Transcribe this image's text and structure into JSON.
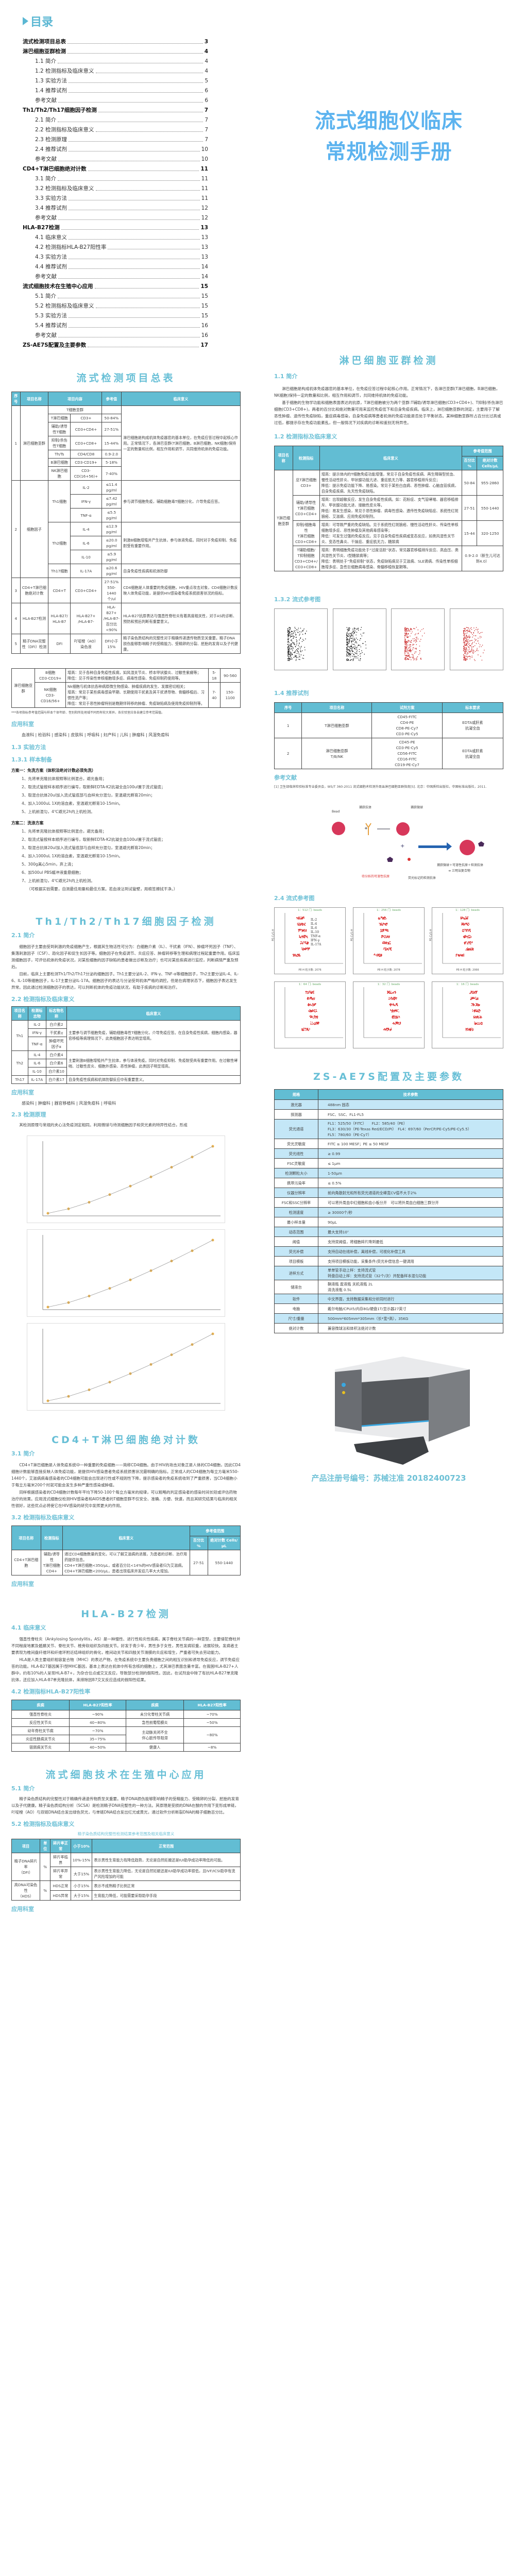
{
  "toc": {
    "title": "目录",
    "items": [
      {
        "label": "流式检测项目总表",
        "page": "3",
        "main": true
      },
      {
        "label": "淋巴细胞亚群检测",
        "page": "4",
        "main": true
      },
      {
        "label": "1.1 简介",
        "page": "4"
      },
      {
        "label": "1.2 检测指标及临床意义",
        "page": "4"
      },
      {
        "label": "1.3 实验方法",
        "page": "5"
      },
      {
        "label": "1.4 推荐试剂",
        "page": "6"
      },
      {
        "label": "参考文献",
        "page": "6"
      },
      {
        "label": "Th1/Th2/Th17细胞因子检测",
        "page": "7",
        "main": true
      },
      {
        "label": "2.1 简介",
        "page": "7"
      },
      {
        "label": "2.2 检测指标及临床意义",
        "page": "7"
      },
      {
        "label": "2.3 检测原理",
        "page": "7"
      },
      {
        "label": "2.4 推荐试剂",
        "page": "10"
      },
      {
        "label": "参考文献",
        "page": "10"
      },
      {
        "label": "CD4+T淋巴细胞绝对计数",
        "page": "11",
        "main": true
      },
      {
        "label": "3.1 简介",
        "page": "11"
      },
      {
        "label": "3.2 检测指标及临床意义",
        "page": "11"
      },
      {
        "label": "3.3 实验方法",
        "page": "11"
      },
      {
        "label": "3.4 推荐试剂",
        "page": "12"
      },
      {
        "label": "参考文献",
        "page": "12"
      },
      {
        "label": "HLA-B27检测",
        "page": "13",
        "main": true
      },
      {
        "label": "4.1 临床意义",
        "page": "13"
      },
      {
        "label": "4.2 检测指标HLA-B27阳性率",
        "page": "13"
      },
      {
        "label": "4.3 实验方法",
        "page": "13"
      },
      {
        "label": "4.4 推荐试剂",
        "page": "14"
      },
      {
        "label": "参考文献",
        "page": "14"
      },
      {
        "label": "流式细胞技术在生殖中心应用",
        "page": "15",
        "main": true
      },
      {
        "label": "5.1 简介",
        "page": "15"
      },
      {
        "label": "5.2 检测指标及临床意义",
        "page": "15"
      },
      {
        "label": "5.3 实验方法",
        "page": "15"
      },
      {
        "label": "5.4 推荐试剂",
        "page": "16"
      },
      {
        "label": "参考文献",
        "page": "16"
      },
      {
        "label": "ZS-AE7S配置及主要参数",
        "page": "17",
        "main": true
      }
    ]
  },
  "cover": {
    "line1": "流式细胞仪临床",
    "line2": "常规检测手册"
  },
  "colors": {
    "accent": "#62bdd3",
    "heading": "#6ec1d6",
    "cover": "#5cb3ef",
    "row_alt": "#c4e7f7"
  },
  "summary": {
    "title": "流式检测项目总表",
    "headers": [
      "序号",
      "项目名称",
      "项目内容",
      "参考值",
      "临床意义"
    ],
    "rows": [
      [
        {
          "t": "1",
          "rs": 7
        },
        {
          "t": "淋巴细胞亚群",
          "rs": 7
        },
        {
          "t": "T细胞亚群",
          "cs": 2
        },
        {
          "t": ""
        },
        {
          "t": "淋巴细胞是构成机体免疫器官的基本单位，在免疫应答过程中起核心作用。正常情况下，各淋巴亚群(T淋巴细胞，B淋巴细胞，NK细胞)保持一定的数量和比例，相互作用和调节，共同维持机体的免疫功能。",
          "rs": 7,
          "l": true
        }
      ],
      [
        {
          "t": "T淋巴细胞"
        },
        {
          "t": "CD3+"
        },
        {
          "t": "50-84%"
        }
      ],
      [
        {
          "t": "辅助/诱导性T细胞"
        },
        {
          "t": "CD3+CD4+"
        },
        {
          "t": "27-51%"
        }
      ],
      [
        {
          "t": "抑制/杀伤性T细胞"
        },
        {
          "t": "CD3+CD8+"
        },
        {
          "t": "15-44%"
        }
      ],
      [
        {
          "t": "Th/Ts"
        },
        {
          "t": "CD4/CD8"
        },
        {
          "t": "0.9-2.0"
        }
      ],
      [
        {
          "t": "B淋巴细胞"
        },
        {
          "t": "CD3-CD19+"
        },
        {
          "t": "5-18%"
        }
      ],
      [
        {
          "t": "NK淋巴细胞"
        },
        {
          "t": "CD3-CD(16+56)+"
        },
        {
          "t": "7-40%"
        }
      ],
      [
        {
          "t": "2",
          "rs": 7
        },
        {
          "t": "细胞因子",
          "rs": 7
        },
        {
          "t": "Th1细胞",
          "rs": 3
        },
        {
          "t": "IL-2"
        },
        {
          "t": "≤11.4 pg/ml"
        },
        {
          "t": "参与调节细胞免疫，辅助细胞毒T细胞分化，介导免疫应答。",
          "rs": 3,
          "l": true
        }
      ],
      [
        {
          "t": "IFN-γ"
        },
        {
          "t": "≤7.42 pg/ml"
        }
      ],
      [
        {
          "t": "TNF-α"
        },
        {
          "t": "≤5.5 pg/ml"
        }
      ],
      [
        {
          "t": "Th2细胞",
          "rs": 3
        },
        {
          "t": "IL-4"
        },
        {
          "t": "≤12.9 pg/ml"
        },
        {
          "t": "刺激B细胞增殖并产生抗体，参与体液免疫。同时对于免疫抑制、免疫耐受有重要作用。",
          "rs": 3,
          "l": true
        }
      ],
      [
        {
          "t": "IL-6"
        },
        {
          "t": "≤20.0 pg/ml"
        }
      ],
      [
        {
          "t": "IL-10"
        },
        {
          "t": "≤5.9 pg/ml"
        }
      ],
      [
        {
          "t": "Th17细胞"
        },
        {
          "t": "IL-17A"
        },
        {
          "t": "≤20.6 pg/ml"
        },
        {
          "t": "自身免疫性疾病和机体防御",
          "l": true
        }
      ],
      [
        {
          "t": "3"
        },
        {
          "t": "CD4+T淋巴细胞绝对计数"
        },
        {
          "t": "CD4+T"
        },
        {
          "t": "CD3+CD4+"
        },
        {
          "t": "27-51%\n550-1440个/ul"
        },
        {
          "t": "CD4细胞是人体重要的免疫细胞，HIV重点攻击对象，CD4细胞计数反映人体免疫功能，是提供HIV感染者免疫系统损害状况的指标。",
          "l": true
        }
      ],
      [
        {
          "t": "4"
        },
        {
          "t": "HLA-B27检测"
        },
        {
          "t": "HLA-B27/\nHLA-B7"
        },
        {
          "t": "HLA-B27+\n/HLA-B7-"
        },
        {
          "t": "HLA-B27+\n/HLA-B7-\n百分比<90%"
        },
        {
          "t": "HLA-B27抗原表达与强直性脊柱炎有着高度相关性，对于AS的诊断、预防和预后判断有重要意义。",
          "l": true
        }
      ],
      [
        {
          "t": "5"
        },
        {
          "t": "精子DNA完整性（DFI）检测"
        },
        {
          "t": "DFI"
        },
        {
          "t": "吖啶橙（AO）染色液"
        },
        {
          "t": "DFI小于15%"
        },
        {
          "t": "精子染色质结构的完整性对于精确传递遗传物质至关重要。精子DNA损伤能够影响精子的受精能力、受精卵的分裂、胚胎的发育以及子代健康。",
          "l": true
        }
      ]
    ]
  },
  "lymph": {
    "title": "淋巴细胞亚群检测",
    "s11": "1.1 简介",
    "p1": "淋巴细胞是构成机体免疫器官的基本单位，在免疫应答过程中起核心作用。正常情况下，各淋巴亚群(T淋巴细胞，B淋巴细胞，NK细胞)保持一定的数量和比例，相互作用和调节，共同维持机体的免疫功能。",
    "p2": "基于细胞的生物学功能和细胞表面表达的抗原，T淋巴细胞被分为两个亚群:T辅助/诱导淋巴细胞(CD3+CD4+)、T抑制/杀伤淋巴细胞(CD3+CD8+)，两者的百分比和绝对数量可用来监控免疫低下和自身免疫疾病。临床上，淋巴细胞亚群的测定，主要用于了解恶性肿瘤、遗传性免疫缺陷，重症病毒感染，自身免疫病等患者机体的免疫功能是否处于平衡状态。某种细胞亚群所占百分比过高或过低，都提示存在免疫功能紊乱，但一般情况下对疾病的诊断和鉴别无特异性。",
    "s12": "1.2 检测指标及临床意义",
    "headers": [
      "项目名称",
      "检测指标",
      "临床意义",
      "参考值范围",
      "百分比 %",
      "绝对计数 Cells/μL"
    ],
    "rows": [
      [
        {
          "t": "T淋巴细胞亚群",
          "rs": 4
        },
        {
          "t": "总T淋巴细胞\nCD3+"
        },
        {
          "t": "增高：提示体内的T细胞免疫功能增强，常见于自身免疫性疾病、再生障碍型贫血、慢性活动性肝炎、甲状腺功能亢进、重症肌无力等、器官移植排斥反应；\n降低：提示免疫功能下降、易感染。常见于某些白血病、恶性肿瘤、心脑血管疾病，自身免疫疾病、先天性免疫缺陷。",
          "l": true
        },
        {
          "t": "50-84"
        },
        {
          "t": "955-2860"
        }
      ],
      [
        {
          "t": "辅助/诱导性\nT淋巴细胞\nCD3+CD4+"
        },
        {
          "t": "增高：出现超敏反应，发生自身免疫性疾病。如：花粉症、支气管哮喘、器官移植排斥、甲状腺功能亢进、接触性皮炎等。\n降低：易发生感染，常见于恶性肿瘤、病毒性感染、遗传性免疫缺陷症、系统性红斑狼疮、艾滋病、应用免疫抑制剂。",
          "l": true
        },
        {
          "t": "27-51"
        },
        {
          "t": "550-1440"
        }
      ],
      [
        {
          "t": "抑制/细胞毒性\nT淋巴细胞\nCD3+CD8+"
        },
        {
          "t": "增高：可导致严重的免疫缺陷。见于系统性红斑狼疮、慢性活动性肝炎、传染性单核细胞增多症、恶性肿瘤及其他病毒感染等；\n降低：可发生过强的免疫反应。见于自身免疫性疾病或变态反应，如类风湿性关节炎、变态性鼻炎、干燥症、重症肌无力，糖尿病",
          "l": true
        },
        {
          "t": "15-44"
        },
        {
          "t": "320-1250"
        }
      ],
      [
        {
          "t": "T辅助细胞/\nT抑制细胞\nCD3+CD4+/\nCD3+CD8+"
        },
        {
          "t": "增高：表明细胞免疫功能处于“过度活跃”状态，常见器官移植排斥反应、高血压、类风湿性关节炎、I型糖尿病等；\n降低：表明处于“免疫抑制”状态，免疫缺陷病见于艾滋病、SLE肾病、传染性单核细胞增多症、急性巨细胞病毒感染、骨髓移植恢复期等。",
          "l": true
        },
        {
          "t": "0.9-2.0（新生儿可达到4.0）",
          "cs": 2
        }
      ]
    ],
    "rows2": [
      [
        {
          "t": "淋巴细胞亚群",
          "rs": 2
        },
        {
          "t": "B细胞\nCD3-CD19+"
        },
        {
          "t": "增高：见于各种自身免疫性疾病，如风湿关节炎、桥本甲状腺炎、过敏性紫癜等；\n降低：见于传染性单核细胞增多症、病毒性感染、免疫抑制药使用等。",
          "l": true
        },
        {
          "t": "5-18"
        },
        {
          "t": "90-560"
        }
      ],
      [
        {
          "t": "NK细胞\nCD3-CD16/56+"
        },
        {
          "t": "Nk细胞与机体抗各种病原微生物感染、肿瘤疾病的发生、发展密切相关；\n增高：常见于某些病毒感染早期、长期使用干扰素及其干扰诱导物、骨髓移植后、习惯性流产等；\n降低：常见于恶性肿瘤特别是晚期伴转移的肿瘤、免疫缺陷病及使用免疫抑制剂等。",
          "l": true
        },
        {
          "t": "7-40"
        },
        {
          "t": "150-1100"
        }
      ]
    ],
    "footnote": "***各项指标参考值范围与样本个体年龄、性别和所处地域不同而有较大差异，各实验室应各自建立参考范围值。",
    "dept_h": "应用科室",
    "depts": "血液科 | 检验科 | 感染科 | 皮肤科 | 呼吸科 | 妇产科 | 儿科 | 肿瘤科 | 风湿免疫科",
    "s13": "1.3 实验方法",
    "s131": "1.3.1 样本制备",
    "planA": "方案一：免洗方案（体积法绝对计数必须免洗）",
    "stepsA": [
      "1、先将单克隆抗体按照等比例混合，避光备用；",
      "2、取流式管按样本顺序进行编号，取新鲜EDTA-K2抗凝全血100ul置于流式管底；",
      "3、取混合抗体20ul加入流式管底部与血样充分混匀，室温避光孵育20min；",
      "4、加入1000uL 1X的溶血素，室温避光孵育10-15min。",
      "5、上机前混匀，4℃避光2h内上机检测。"
    ],
    "planB": "方案二：洗涤方案",
    "stepsB": [
      "1、先将单克隆抗体按照等比例混合，避光备用；",
      "2、取流式管按样本顺序进行编号，取新鲜EDTA-K2抗凝全血100ul置于流式管底；",
      "3、取混合抗体20ul加入流式管底部与血样充分混匀，室温避光孵育20min；",
      "4、加入1000uL 1X的溶血素，室温避光孵育10-15min。",
      "5、300g离心5min，弃上清；",
      "6、加500ul PBS缓冲液重悬细胞；",
      "7、上机前混匀，4℃避光2h内上机检测。"
    ],
    "stepsNote": "（可根据实验需要，自测最佳用量和最佳方案。若血液沾到试管壁，用棉签擦拭干净。）",
    "s132": "1.3.2 流式参考图",
    "s14": "1.4 推荐试剂",
    "reagentHeaders": [
      "序号",
      "项目名称",
      "试剂方案",
      "标本要求"
    ],
    "reagentRows": [
      [
        {
          "t": "1"
        },
        {
          "t": "T淋巴细胞亚群"
        },
        {
          "t": "CD45-FITC\nCD4-PE\nCD8-PE-Cy7\nCD3-PE-Cy5"
        },
        {
          "t": "EDTA或肝素\n抗凝全血"
        }
      ],
      [
        {
          "t": "2"
        },
        {
          "t": "淋巴细胞亚群\nT/B/NK"
        },
        {
          "t": "CD45-PE\nCD3-PE-Cy5\nCD56-FITC\nCD16-FITC\nCD19-PE-Cy7"
        },
        {
          "t": "EDTA或肝素\n抗凝全血"
        }
      ]
    ],
    "ref_h": "参考文献",
    "ref1": "[1] 卫生部临床检验标准专业委员会，WS/T 360-2011 流式细胞术检测外周血淋巴细胞亚群指南[S]. 北京：中国质检出版社，中国标准出版社，2011."
  },
  "th": {
    "title": "Th1/Th2/Th17细胞因子检测",
    "s21": "2.1 简介",
    "p1": "细胞因子主要由受到刺激的免疫细胞产生，根据其生物活性可分为：白细胞介素（IL）、干扰素（IFN）、肿瘤坏死因子（TNF）、集落刺激因子（CSF）、趋化因子和促生长因子等。细胞因子在免疫调节、炎症应答、肿瘤转移等生理和病理过程起重要作用。临床监测细胞因子，可评估机体的免疫状况，对某些细胞的因子缺陷的患者做出诊断及治疗；也可对某些疾病进行监控，判断病情严重及预后。",
    "p2": "目前，临床上主要检测Th1/Th2/Th17分泌的细胞因子。Th1主要分泌IL-2、IFN-γ、TNF-α等细胞因子，Th2主要分泌IL-4、IL-6、IL-10等细胞因子，IL-17主要分泌IL-17A。细胞因子的表达与分泌受到机体严格的调控。但是在病理状态下，细胞因子表达发生异常。因此通过检测细胞因子的表达，可以判断机体的免疫功能状况，有助于疾病的诊断和治疗。",
    "s22": "2.2 检测指标及临床意义",
    "headers": [
      "项目名称",
      "检测标志物",
      "标志物名称",
      "临床意义"
    ],
    "rows": [
      [
        {
          "t": "Th1",
          "rs": 3
        },
        {
          "t": "IL-2"
        },
        {
          "t": "白介素2"
        },
        {
          "t": "主要参与调节细胞免疫，辅助细胞毒性T细胞分化，介导免疫应答。在自身免疫性疾病，细胞内感染，器官移植等病理情况下，此类细胞因子表达明显增高。",
          "rs": 3,
          "l": true
        }
      ],
      [
        {
          "t": "IFN-γ"
        },
        {
          "t": "干扰素γ"
        }
      ],
      [
        {
          "t": "TNF-α"
        },
        {
          "t": "肿瘤坏死因子α"
        }
      ],
      [
        {
          "t": "Th2",
          "rs": 3
        },
        {
          "t": "IL-4"
        },
        {
          "t": "白介素4"
        },
        {
          "t": "主要刺激B细胞增殖并产生抗体，参与体液免疫。同时对免疫抑制、免疫耐受具有重要作用。在过敏性哮喘、过敏性皮炎、细胞外感染、恶性肿瘤，此类因子明显增高。",
          "rs": 3,
          "l": true
        }
      ],
      [
        {
          "t": "IL-6"
        },
        {
          "t": "白介素6"
        }
      ],
      [
        {
          "t": "IL-10"
        },
        {
          "t": "白介素10"
        }
      ],
      [
        {
          "t": "Th17"
        },
        {
          "t": "IL-17A"
        },
        {
          "t": "白介素17"
        },
        {
          "t": "自身免疫性疾病和机体防御反应中有重要意义。",
          "l": true
        }
      ]
    ],
    "dept_h": "应用科室",
    "depts": "感染科 | 肿瘤科 | 器官移植科 | 风湿免疫科 | 呼吸科",
    "s23": "2.3 检测原理",
    "p3": "其检测原理与常规的夹心法免疫测定相同。利用微球与待测细胞因子和荧光素的特异性结合，形成",
    "diagram": {
      "bead": "Bead",
      "capture_ab": "捕获抗体",
      "capture_bead": "捕获微球",
      "antigen": "待分析的可溶性抗原",
      "detect_ab": "荧光标记的检测抗体",
      "complex1": "捕获微球＋可溶性抗原＋检测抗体",
      "complex2": "➔ 三明治复合物"
    },
    "s24": "2.4 流式参考图",
    "plots": [
      {
        "title": "1：512 门: beads",
        "count": "PE-H 粒子数: 2076"
      },
      {
        "title": "1：256 门: beads",
        "count": "PE-H 粒子数: 2078"
      },
      {
        "title": "1：128 门: beads",
        "count": "PE-H 粒子数: 2066"
      },
      {
        "title": "1：64 门: beads",
        "count": ""
      },
      {
        "title": "1：32 门: beads",
        "count": ""
      },
      {
        "title": "1：16 门: beads",
        "count": ""
      }
    ],
    "legend": [
      "IL-2",
      "IL-4",
      "IL-6",
      "IL-10",
      "TNF-α",
      "IFN-γ",
      "IL-17A"
    ],
    "yaxis": "PE-Cy5-H"
  },
  "cd4": {
    "title": "CD4+T淋巴细胞绝对计数",
    "s31": "3.1 简介",
    "p1": "CD4+T淋巴细胞是人体免疫系统中一种重要的免疫细胞——简称CD4细胞。由于HIV的攻击对象正是人体的CD4细胞，因此CD4细胞计数能够直接反映人体免疫功能，是提供HIV感染患者免疫系统损害状况最明确的指标。正常成人的CD4细胞为每立方毫米550-1440个，艾滋病病毒感染者的CD4细胞可能会出现进行性或不规则性下降，提示感染者的免疫系统收到了严重损害，当CD4细胞小于每立方毫米200个时就可能会发生多种严重性感染或肿瘤。",
    "p2": "同样根据感染者的CD4细胞计数每年平均下降50-100个每立方毫米的规律，可以粗略的判定感染者的感染时间长短或评估药物治疗的效果。应用流式细胞仪检测HIV感染者和AIDS患者的T细胞亚群不仅安全、准确、方便、快速，而且其研究结果与临床的相关性很好，这些优点必将使它在HIV感染的研究中发挥更大的作用。",
    "s32": "3.2 检测指标及临床意义",
    "rows": [
      [
        {
          "t": "CD4+T淋巴细胞"
        },
        {
          "t": "辅助/诱导性\nT淋巴细胞\nCD4+"
        },
        {
          "t": "通过CD4细胞数量的变化，可以了解艾滋病的进展，为患者的诊断、治疗用药提供信息。\nCD4+T淋巴细胞<350/μL，或者百分比<14%的HIV感染者归为艾滋病。\nCD4+T淋巴细胞<200/μL，患者出现临床并发症几率大大增加。",
          "l": true
        },
        {
          "t": "27-51"
        },
        {
          "t": "550-1440"
        }
      ]
    ],
    "dept_h": "应用科室"
  },
  "hla": {
    "title": "HLA-B27检测",
    "s41": "4.1 临床意义",
    "p1": "强直性脊柱炎（Ankylosing Spondylitis，AS）是一种慢性、进行性和炎性疾病，属于脊柱关节病的一种亚型，主要侵犯脊柱并不同程度地累及骶髂关节、脊柱关节、椎旁软组织及四肢关节。好发于青少年，男性多于女性，男性发病较重，进展较快。发病者主要表现为椎间盘纤维环和纤维环附近结缔组织的骨化，椎间动关节和四肢关节滑膜的炎症和增生，严重者可失去劳动能力。",
    "p2": "HLA是人类主要组织相容复合物（MHC）的表达产物，在免疫系统中主要负责细胞之间的相互识别和诱导免疫反应，调节免疫应答的功能。HLA-B27基因属于I型MHC基因，基本上表达在机体中所有含核的细胞上，尤其淋巴表面含量丰富。在我国HLA-B27+人群中，约有10%的人呈现HLA-B7+，为杂合位点或交叉反应，导致部分检测的假阳性。因此，在试剂盒中除了有抗HLA-B27单克隆抗体，还应加入HLA-B7单克隆抗体，来排除因B7交叉反应造成的假阳性结果。",
    "s42": "4.2 检测指标HLA-B27阳性率",
    "headers": [
      "疾病",
      "HLA-B27阳性率",
      "疾病",
      "HLA-B27阳性率"
    ],
    "rows": [
      [
        {
          "t": "强直性脊柱炎"
        },
        {
          "t": "~90%"
        },
        {
          "t": "未分化脊柱关节病"
        },
        {
          "t": "~70%"
        }
      ],
      [
        {
          "t": "反应性关节炎"
        },
        {
          "t": "40~80%"
        },
        {
          "t": "急性前葡萄膜炎"
        },
        {
          "t": "~50%"
        }
      ],
      [
        {
          "t": "幼年脊柱关节病"
        },
        {
          "t": "~70%"
        },
        {
          "t": "主动脉关闭不全\n伴心脏传导阻滞",
          "rs": 2
        },
        {
          "t": "~80%",
          "rs": 2
        }
      ],
      [
        {
          "t": "炎症性肠病关节炎"
        },
        {
          "t": "35~75%"
        }
      ],
      [
        {
          "t": "银屑病关节炎"
        },
        {
          "t": "40~50%"
        },
        {
          "t": "健康人"
        },
        {
          "t": "~8%"
        }
      ]
    ]
  },
  "repro": {
    "title": "流式细胞技术在生殖中心应用",
    "s51": "5.1 简介",
    "p1": "精子染色质结构的完整性对于精确传递遗传物质至关重要。精子DNA损伤能够影响精子的受精能力、受精卵的分裂、胚胎的发育以及子代健康。精子染色质结构分析（SCSA）是检测精子DNA完整性的一种方法。其原理是受损的DNA在酸的作用下变形成单链，吖啶橙（AO）与双链DNA结合发出绿色荧光，与单链DNA结合发出红光或黄光，通过软件分析断裂DNA的精子细胞百分比。",
    "s52": "5.2 检测指标及临床意义",
    "caption": "精子染色质结构完整性检测结果参考范围及相关临床意义",
    "headers": [
      "项目",
      "单位",
      "碎片率正常",
      "小于10%",
      "正常范围"
    ],
    "rows": [
      [
        {
          "t": "精子DNA碎片率\n（DFI）",
          "rs": 2
        },
        {
          "t": "%",
          "rs": 2
        },
        {
          "t": "碎片率临界"
        },
        {
          "t": "10%-15%"
        },
        {
          "t": "表示男性生育能力有降低趋势，无论是自然妊娠还是IUI助孕成功率降低的可能。",
          "l": true
        }
      ],
      [
        {
          "t": "碎片率异常"
        },
        {
          "t": "大于15%"
        },
        {
          "t": "表示男性生育能力降低，无论是自然妊娠还是IUI助孕成功率很低，且IVF/ICSI助孕有流产风险增加的可能",
          "l": true
        }
      ],
      [
        {
          "t": "高DNA可染色性\n（HDS）",
          "rs": 2
        },
        {
          "t": "%",
          "rs": 2
        },
        {
          "t": "HDS正常"
        },
        {
          "t": "小于15%"
        },
        {
          "t": "表示不成熟精子比例正常",
          "l": true
        }
      ],
      [
        {
          "t": "HDS异常"
        },
        {
          "t": "大于15%"
        },
        {
          "t": "生育能力降低，可能需要采取助孕手段",
          "l": true
        }
      ]
    ],
    "dept_h": "应用科室"
  },
  "params": {
    "title": "ZS-AE7S配置及主要参数",
    "headers": [
      "规格",
      "技术参数"
    ],
    "rows": [
      [
        "激光器",
        "488nm 固态"
      ],
      [
        "探测器",
        "FSC、SSC、FL1-FL5"
      ],
      [
        "荧光通道",
        "FL1：525/50（FITC）　　FL2：585/40（PE）\nFL3：630/30（PE-Texas Red/ECD/PI）　FL4：697/60（PerCP/PE-Cy5/PE-Cy5.5）\nFL5：780/60（PE-Cy7）"
      ],
      [
        "荧光灵敏度",
        "FITC ≤ 100 MESF；PE ≤ 50 MESF"
      ],
      [
        "荧光线性",
        "≥ 0.99"
      ],
      [
        "FSC灵敏度",
        "≤ 1μm"
      ],
      [
        "检测颗粒大小",
        "1-50μm"
      ],
      [
        "携带污染率",
        "≤ 0.5%"
      ],
      [
        "仪器分辨率",
        "前向角散射光和所有荧光通道的全峰宽CV值不大于2%"
      ],
      [
        "FSC和SSC分辨率",
        "可以将外周血中红细胞和血小板分开　可以将外周血白细胞三群分开"
      ],
      [
        "检测速度",
        "≥ 30000个/秒"
      ],
      [
        "最小样本量",
        "90μL"
      ],
      [
        "动态范围",
        "最大支持10⁷"
      ],
      [
        "阈值",
        "支持双阈值，将细胞碎片降到最低"
      ],
      [
        "荧光补偿",
        "支持自动在线补偿，离线补偿，可视化补偿工具"
      ],
      [
        "项目模板",
        "支持项目模板功能，采集条件/荧光补偿信息一键调用"
      ],
      [
        "进样方式",
        "单单管手动上样：支持流式管\n转盘自动上样：支持流式管（32个/次）并配备样本混匀功能"
      ],
      [
        "储液台",
        "鞘液瓶 废液瓶 关机液瓶 2L\n清洗液瓶 0.5L"
      ],
      [
        "软件",
        "中文界面，支持数据采集和分析同时进行"
      ],
      [
        "电脑",
        "戴尔电脑/CPUI5/内存8G/硬盘1T/显示器27英寸"
      ],
      [
        "尺寸/重量",
        "500mm*605mm*305mm（长*宽*高），35KG"
      ],
      [
        "绝对计数",
        "兼容微球法和体积法绝对计数"
      ]
    ]
  },
  "product": {
    "registration": "产品注册号编号：苏械注准 20182400723"
  }
}
